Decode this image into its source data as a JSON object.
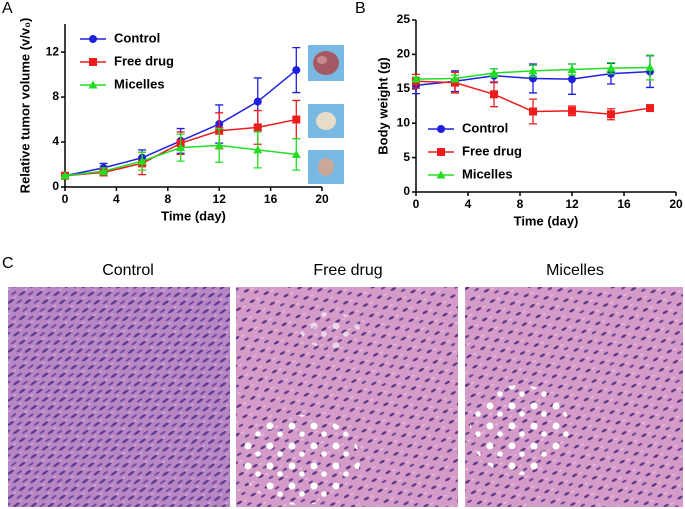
{
  "panel_labels": [
    "A",
    "B",
    "C"
  ],
  "histology": {
    "titles": [
      "Control",
      "Free drug",
      "Micelles"
    ]
  },
  "chart_data": [
    {
      "type": "line",
      "xlabel": "Time (day)",
      "ylabel": "Relative tumor volume (v/v₀)",
      "x": [
        0,
        3,
        6,
        9,
        12,
        15,
        18
      ],
      "xlim": [
        0,
        20
      ],
      "xticks": [
        0,
        4,
        8,
        12,
        16,
        20
      ],
      "ylim": [
        0,
        14.5
      ],
      "yticks": [
        0,
        4,
        8,
        12
      ],
      "legend": "upper left",
      "series": [
        {
          "name": "Control",
          "color": "#1f1fe0",
          "marker": "circle",
          "values": [
            1,
            1.7,
            2.6,
            4.1,
            5.6,
            7.6,
            10.4
          ],
          "errors": [
            0.2,
            0.4,
            0.7,
            1.1,
            1.7,
            2.1,
            2.0
          ]
        },
        {
          "name": "Free drug",
          "color": "#ee1c1c",
          "marker": "square",
          "values": [
            1,
            1.3,
            2.1,
            3.9,
            5.0,
            5.3,
            6.0
          ],
          "errors": [
            0.1,
            0.3,
            1.0,
            1.0,
            1.6,
            1.5,
            1.7
          ]
        },
        {
          "name": "Micelles",
          "color": "#22dd22",
          "marker": "triangle",
          "values": [
            1,
            1.4,
            2.3,
            3.5,
            3.7,
            3.3,
            2.9
          ],
          "errors": [
            0.1,
            0.3,
            0.8,
            1.2,
            1.5,
            1.6,
            1.4
          ]
        }
      ]
    },
    {
      "type": "line",
      "xlabel": "Time (day)",
      "ylabel": "Body weight (g)",
      "x": [
        0,
        3,
        6,
        9,
        12,
        15,
        18
      ],
      "xlim": [
        0,
        20
      ],
      "xticks": [
        0,
        4,
        8,
        12,
        16,
        20
      ],
      "ylim": [
        0,
        25
      ],
      "yticks": [
        0,
        5,
        10,
        15,
        20,
        25
      ],
      "legend": "lower left",
      "series": [
        {
          "name": "Control",
          "color": "#1f1fe0",
          "marker": "circle",
          "values": [
            15.5,
            16.1,
            16.9,
            16.5,
            16.4,
            17.2,
            17.5
          ],
          "errors": [
            1.2,
            1.5,
            1.0,
            2.1,
            2.2,
            1.5,
            2.3
          ]
        },
        {
          "name": "Free drug",
          "color": "#ee1c1c",
          "marker": "square",
          "values": [
            16.1,
            15.9,
            14.2,
            11.7,
            11.8,
            11.3,
            12.2
          ],
          "errors": [
            1.0,
            1.5,
            1.8,
            1.8,
            0.7,
            0.8,
            0.3
          ]
        },
        {
          "name": "Micelles",
          "color": "#22dd22",
          "marker": "triangle",
          "values": [
            16.4,
            16.5,
            17.3,
            17.6,
            17.8,
            18.0,
            18.1
          ],
          "errors": [
            0.3,
            0.5,
            0.6,
            0.8,
            0.8,
            0.8,
            1.8
          ]
        }
      ]
    }
  ]
}
